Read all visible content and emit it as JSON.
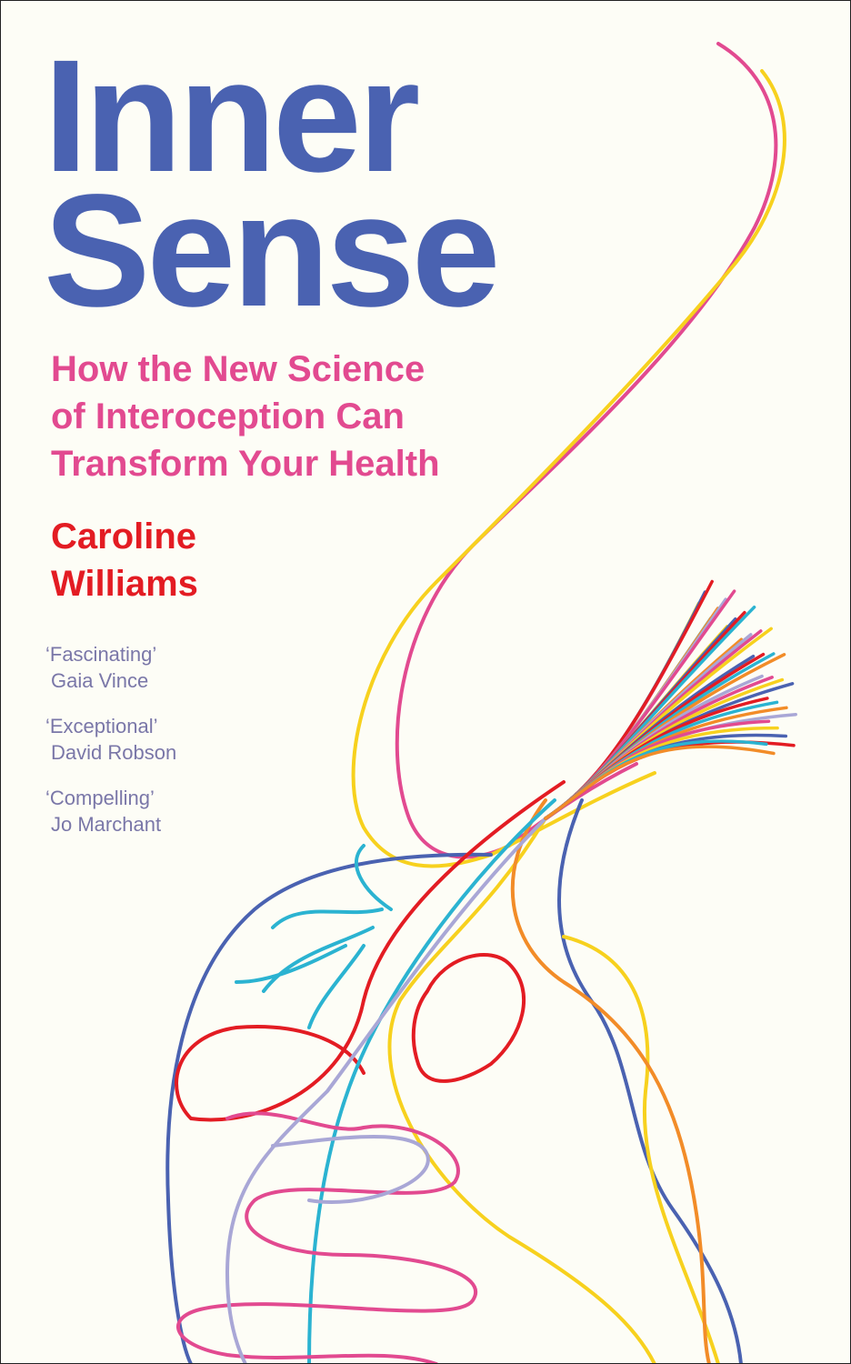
{
  "cover": {
    "title_line1": "Inner",
    "title_line2": "Sense",
    "subtitle_lines": [
      "How the New Science",
      "of Interoception Can",
      "Transform Your Health"
    ],
    "author_lines": [
      "Caroline",
      "Williams"
    ],
    "quotes": [
      {
        "quote": "‘Fascinating’",
        "author": "Gaia Vince"
      },
      {
        "quote": "‘Exceptional’",
        "author": "David Robson"
      },
      {
        "quote": "‘Compelling’",
        "author": "Jo Marchant"
      }
    ]
  },
  "colors": {
    "background": "#fdfdf6",
    "title": "#4a62b1",
    "subtitle": "#e24a90",
    "author": "#e31c23",
    "quotes": "#7a77a8",
    "nerve_palette": [
      "#e24a90",
      "#f7d11e",
      "#4a62b1",
      "#e31c23",
      "#2bb3d1",
      "#f28c28",
      "#a9a7d6"
    ]
  },
  "illustration": "nervous-system-line-art"
}
